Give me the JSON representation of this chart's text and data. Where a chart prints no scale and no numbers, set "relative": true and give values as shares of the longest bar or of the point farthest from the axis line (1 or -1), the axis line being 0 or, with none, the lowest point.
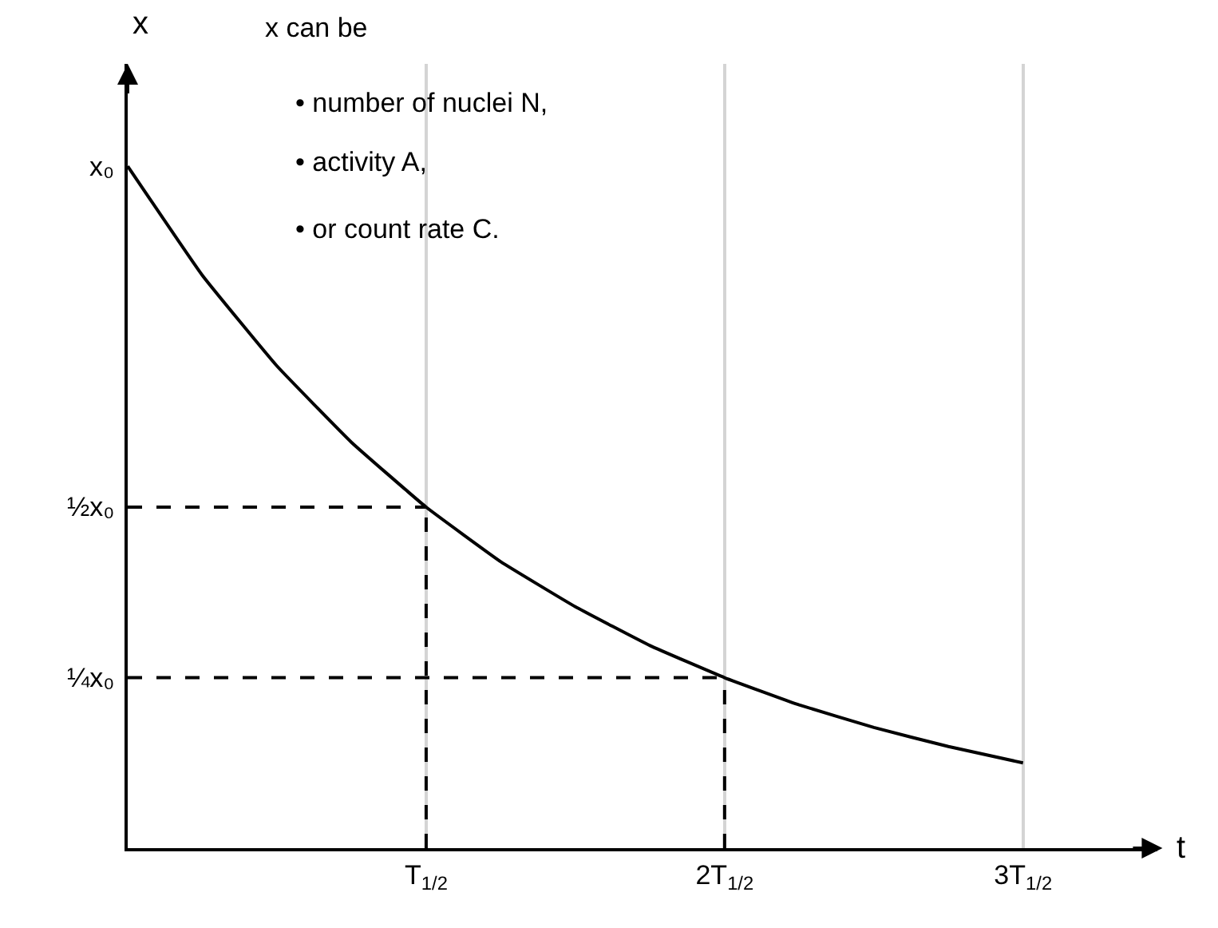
{
  "chart_data": {
    "type": "line",
    "xlabel": "t",
    "ylabel": "x",
    "relative": true,
    "annotations": [
      "x can be",
      "• number of nuclei N,",
      "• activity A,",
      "• or count rate C."
    ],
    "categories": [
      null,
      null,
      null,
      null,
      "T$_{1/2}$",
      null,
      null,
      null,
      "2T$_{1/2}$",
      null,
      null,
      null,
      "3T$_{1/2}$"
    ],
    "series": [
      {
        "name": "x₀",
        "color": "#000000",
        "values": [
          1,
          0.84,
          0.707,
          0.595,
          0.5,
          0.42,
          0.354,
          0.297,
          0.25,
          0.21,
          0.177,
          0.149,
          0.125
        ]
      },
      {
        "name": "½x₀",
        "type": "line",
        "color": "#000000",
        "line_style": "dashed",
        "values": [
          0.5,
          0.5,
          0.5,
          0.5,
          0.5,
          null,
          null,
          null,
          null,
          null,
          null,
          null,
          null
        ]
      },
      {
        "name": "¼x₀",
        "type": "line",
        "color": "#000000",
        "line_style": "dashed",
        "values": [
          0.25,
          0.25,
          0.25,
          0.25,
          0.25,
          0.25,
          0.25,
          0.25,
          0.25,
          null,
          null,
          null,
          null
        ]
      },
      {
        "type": "line",
        "color": "#000000",
        "line_style": "dashed",
        "x": [
          "T$_{1/2}$",
          "T$_{1/2}$"
        ],
        "values": [
          0,
          0.5
        ]
      },
      {
        "type": "line",
        "color": "#000000",
        "line_style": "dashed",
        "x": [
          "2T$_{1/2}$",
          "2T$_{1/2}$"
        ],
        "values": [
          0,
          0.25
        ]
      }
    ],
    "grid": "x",
    "legend": false,
    "line_style": "solid",
    "marker": "none"
  }
}
